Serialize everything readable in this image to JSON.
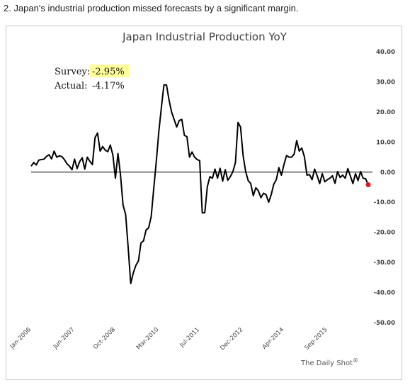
{
  "caption": "2. Japan's industrial production missed forecasts by a significant margin.",
  "credit": "The Daily Shot",
  "credit_mark": "®",
  "annotations": {
    "survey_label": "Survey:",
    "survey_value": "-2.95%",
    "actual_label": "Actual:",
    "actual_value": "-4.17%",
    "highlight_color": "#ffff99"
  },
  "colors": {
    "line": "#000000",
    "last_point": "#e8141b",
    "axis": "#000000"
  },
  "chart_data": {
    "type": "line",
    "title": "Japan Industrial Production YoY",
    "xlabel": "",
    "ylabel": "",
    "ylim": [
      -50,
      40
    ],
    "yticks": [
      "40.00",
      "30.00",
      "20.00",
      "10.00",
      "0.00",
      "-10.00",
      "-20.00",
      "-30.00",
      "-40.00",
      "-50.00"
    ],
    "ytick_values": [
      40,
      30,
      20,
      10,
      0,
      -10,
      -20,
      -30,
      -40,
      -50
    ],
    "xtick_labels": [
      "Jan-2006",
      "Jun-2007",
      "Oct-2008",
      "Mar-2010",
      "Jul-2011",
      "Dec-2012",
      "Apr-2014",
      "Sep-2015"
    ],
    "xtick_index": [
      0,
      17,
      33,
      50,
      66,
      83,
      99,
      116
    ],
    "x_start": "Jan-2006",
    "frequency": "monthly",
    "grid": false,
    "series": [
      {
        "values": [
          2.0,
          3.2,
          2.4,
          4.0,
          4.2,
          4.3,
          5.2,
          5.8,
          4.4,
          7.0,
          5.0,
          5.4,
          5.2,
          4.2,
          2.8,
          2.0,
          0.8,
          4.3,
          1.2,
          3.5,
          4.8,
          1.0,
          5.0,
          3.6,
          2.5,
          11.5,
          13.0,
          7.0,
          8.5,
          7.3,
          6.8,
          9.0,
          5.7,
          -2.0,
          6.2,
          -1.0,
          -11.0,
          -14.0,
          -25.0,
          -37.0,
          -33.5,
          -31.0,
          -29.5,
          -23.5,
          -22.8,
          -19.2,
          -18.5,
          -14.8,
          -5.5,
          3.5,
          13.5,
          21.5,
          29.0,
          29.0,
          24.0,
          20.0,
          17.5,
          15.0,
          17.2,
          17.5,
          12.2,
          11.8,
          5.0,
          6.7,
          5.0,
          4.2,
          3.8,
          -13.5,
          -13.5,
          -4.8,
          -1.5,
          -2.0,
          1.0,
          -2.0,
          1.3,
          -3.0,
          0.8,
          -2.7,
          -1.5,
          0.2,
          3.2,
          16.5,
          15.0,
          5.5,
          0.2,
          -2.8,
          -3.8,
          -7.8,
          -5.2,
          -6.2,
          -8.5,
          -7.0,
          -7.5,
          -10.0,
          -7.5,
          -4.0,
          -2.5,
          1.5,
          -1.0,
          2.5,
          5.5,
          5.0,
          5.0,
          6.0,
          10.5,
          7.0,
          8.0,
          5.2,
          -1.0,
          -0.8,
          -2.5,
          1.0,
          -1.2,
          -3.8,
          -0.5,
          -3.2,
          -2.5,
          -2.0,
          -1.2,
          -3.7,
          0.2,
          -1.8,
          -1.0,
          -2.0,
          1.2,
          -1.3,
          -3.8,
          -0.5,
          -2.8,
          0.2,
          -2.0,
          -2.2,
          -4.17
        ]
      }
    ]
  }
}
